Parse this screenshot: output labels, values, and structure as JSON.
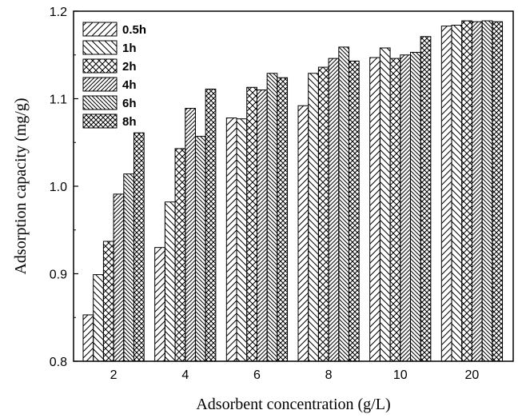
{
  "chart_data": {
    "type": "bar",
    "title": "",
    "xlabel": "Adsorbent concentration (g/L)",
    "ylabel": "Adsorption capacity (mg/g)",
    "ylim": [
      0.8,
      1.2
    ],
    "yticks": [
      "0.8",
      "0.9",
      "1.0",
      "1.1",
      "1.2"
    ],
    "categories": [
      "2",
      "4",
      "6",
      "8",
      "10",
      "20"
    ],
    "legend_position": "top-left",
    "grid": false,
    "series": [
      {
        "name": "0.5h",
        "pattern": "diag-forward",
        "values": [
          0.853,
          0.93,
          1.078,
          1.092,
          1.147,
          1.183
        ]
      },
      {
        "name": "1h",
        "pattern": "diag-back",
        "values": [
          0.899,
          0.982,
          1.077,
          1.129,
          1.158,
          1.184
        ]
      },
      {
        "name": "2h",
        "pattern": "crosshatch",
        "values": [
          0.937,
          1.043,
          1.113,
          1.136,
          1.146,
          1.189
        ]
      },
      {
        "name": "4h",
        "pattern": "vertical-diag",
        "values": [
          0.991,
          1.089,
          1.11,
          1.146,
          1.15,
          1.188
        ]
      },
      {
        "name": "6h",
        "pattern": "diag-back-dense",
        "values": [
          1.014,
          1.057,
          1.129,
          1.159,
          1.153,
          1.189
        ]
      },
      {
        "name": "8h",
        "pattern": "crosshatch-dense",
        "values": [
          1.061,
          1.111,
          1.124,
          1.143,
          1.171,
          1.188
        ]
      }
    ]
  }
}
